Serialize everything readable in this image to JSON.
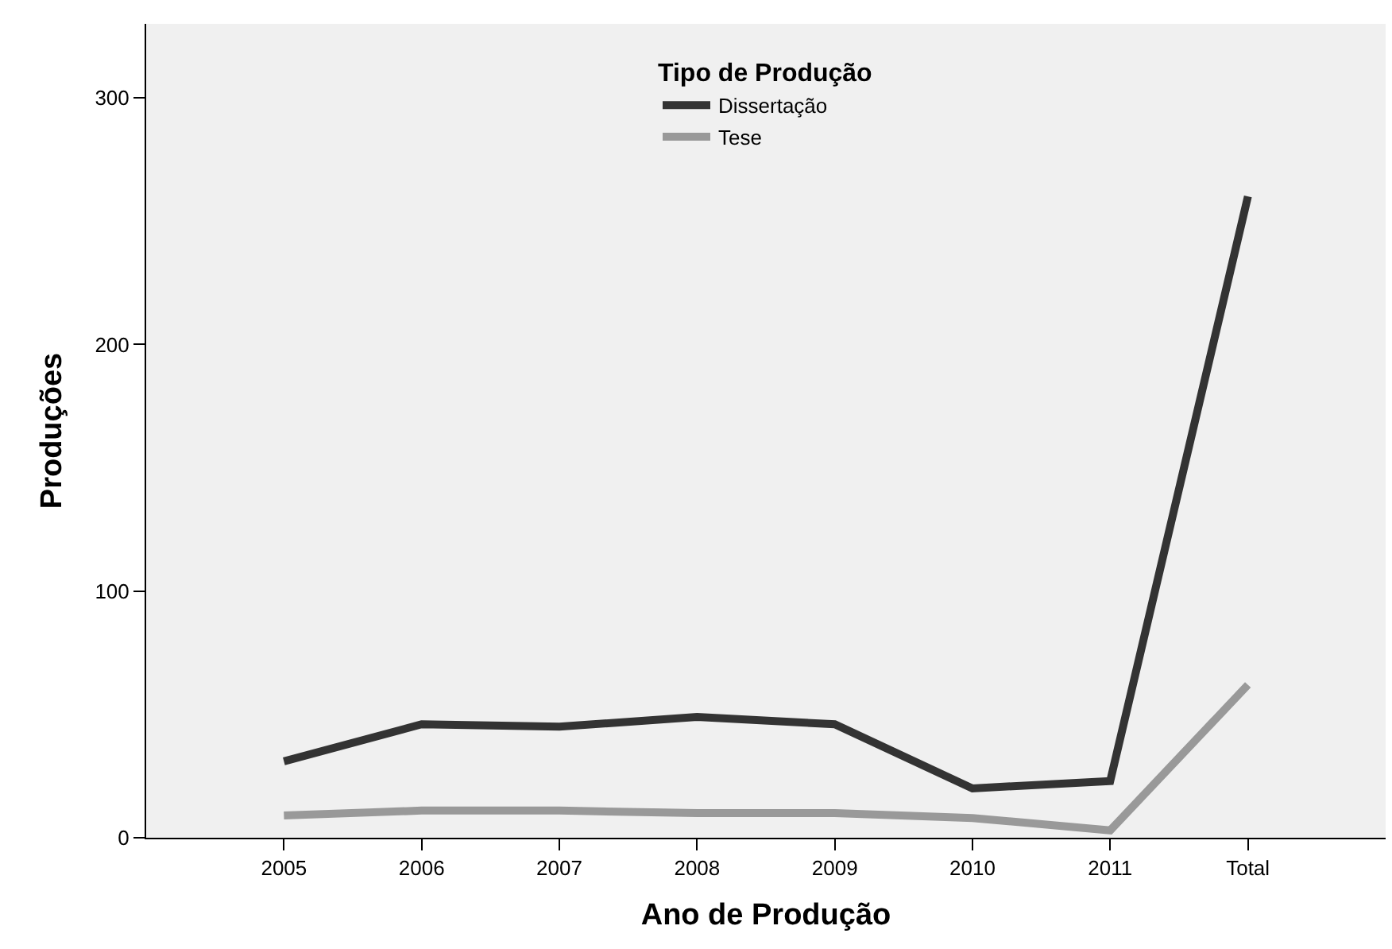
{
  "chart_data": {
    "type": "line",
    "xlabel": "Ano de Produção",
    "ylabel": "Produções",
    "legend_title": "Tipo de Produção",
    "categories": [
      "2005",
      "2006",
      "2007",
      "2008",
      "2009",
      "2010",
      "2011",
      "Total"
    ],
    "series": [
      {
        "name": "Dissertação",
        "color": "#333333",
        "values": [
          31,
          46,
          45,
          49,
          46,
          20,
          23,
          260
        ]
      },
      {
        "name": "Tese",
        "color": "#999999",
        "values": [
          9,
          11,
          11,
          10,
          10,
          8,
          3,
          62
        ]
      }
    ],
    "ylim": [
      0,
      330
    ],
    "yticks": [
      0,
      100,
      200,
      300
    ],
    "grid": false,
    "legend": "top",
    "marker": "none",
    "line_style": "solid"
  }
}
